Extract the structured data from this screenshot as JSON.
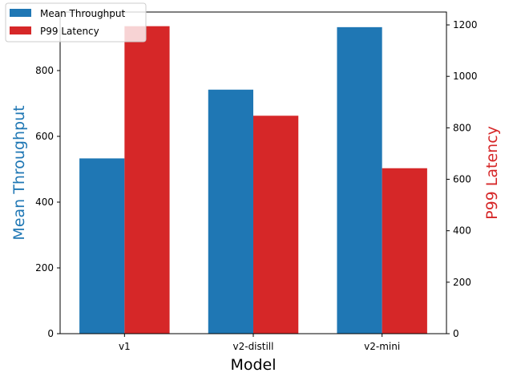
{
  "chart_data": {
    "type": "bar",
    "categories": [
      "v1",
      "v2-distill",
      "v2-mini"
    ],
    "series": [
      {
        "name": "Mean Throughput",
        "axis": "left",
        "color": "#1f77b4",
        "values": [
          533,
          742,
          932
        ]
      },
      {
        "name": "P99 Latency",
        "axis": "right",
        "color": "#d62728",
        "values": [
          1195,
          847,
          643
        ]
      }
    ],
    "xlabel": "Model",
    "ylabel_left": "Mean Throughput",
    "ylabel_right": "P99 Latency",
    "ylim_left": [
      0,
      978
    ],
    "ylim_right": [
      0,
      1250
    ],
    "yticks_left": [
      0,
      200,
      400,
      600,
      800
    ],
    "yticks_right": [
      0,
      200,
      400,
      600,
      800,
      1000,
      1200
    ],
    "ylabel_left_color": "#1f77b4",
    "ylabel_right_color": "#d62728",
    "legend_position": "top-left",
    "grid": false
  }
}
